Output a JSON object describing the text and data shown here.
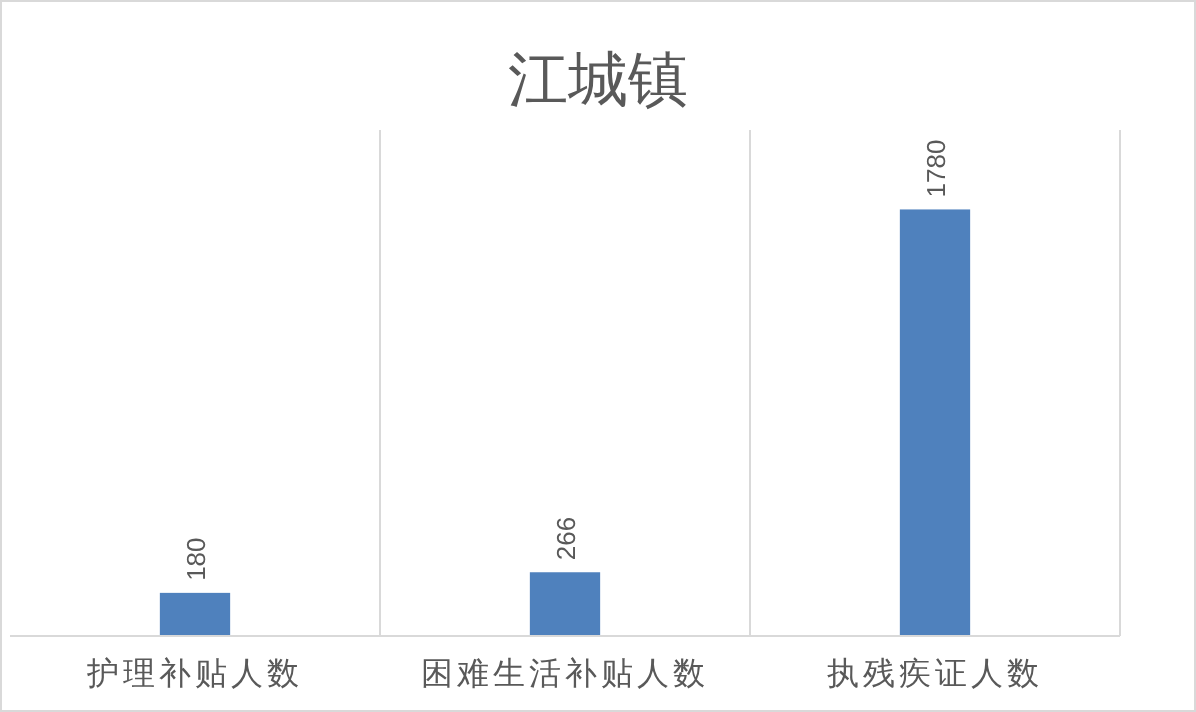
{
  "chart_data": {
    "type": "bar",
    "title": "江城镇",
    "categories": [
      "护理补贴人数",
      "困难生活补贴人数",
      "执残疾证人数"
    ],
    "values": [
      180,
      266,
      1780
    ],
    "color": "#4f81bd",
    "data_labels": true,
    "grid": "x"
  }
}
